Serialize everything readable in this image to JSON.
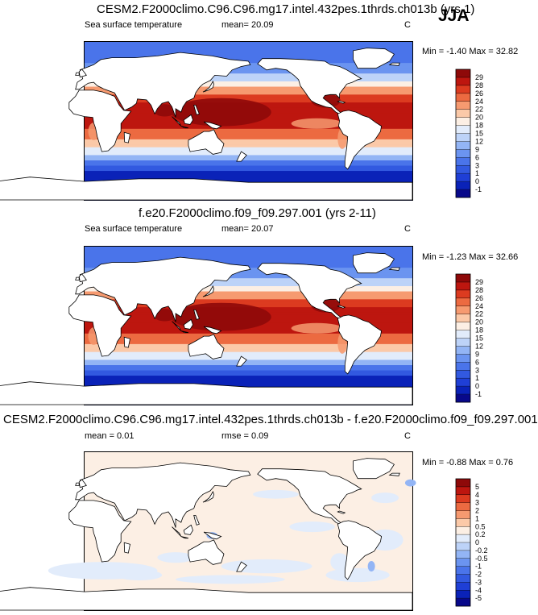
{
  "season": "JJA",
  "panels": [
    {
      "title": "CESM2.F2000climo.C96.C96.mg17.intel.432pes.1thrds.ch013b (yrs 1)",
      "variable": "Sea surface temperature",
      "stat1": "mean=  20.09",
      "stat2": "",
      "units": "C",
      "minmax": "Min =  -1.40 Max =  32.82",
      "field": "sst"
    },
    {
      "title": "f.e20.F2000climo.f09_f09.297.001 (yrs 2-11)",
      "variable": "Sea surface temperature",
      "stat1": "mean=  20.07",
      "stat2": "",
      "units": "C",
      "minmax": "Min =  -1.23 Max =  32.66",
      "field": "sst"
    },
    {
      "title": "CESM2.F2000climo.C96.C96.mg17.intel.432pes.1thrds.ch013b - f.e20.F2000climo.f09_f09.297.001",
      "variable": "",
      "stat1": "mean =   0.01",
      "stat2": "rmse =   0.09",
      "units": "C",
      "minmax": "Min =  -0.88 Max =   0.76",
      "field": "diff"
    }
  ],
  "chart_data": [
    {
      "type": "heatmap",
      "title": "CESM2.F2000climo.C96.C96.mg17.intel.432pes.1thrds.ch013b (yrs 1)",
      "variable": "Sea surface temperature",
      "units": "C",
      "mean": 20.09,
      "min": -1.4,
      "max": 32.82,
      "colorbar_levels": [
        -1,
        0,
        1,
        3,
        6,
        9,
        12,
        15,
        18,
        20,
        22,
        24,
        26,
        28,
        29
      ],
      "colorbar_colors": [
        "#08088a",
        "#0a22b8",
        "#1f3fd6",
        "#3259e0",
        "#4a74ea",
        "#6b94f0",
        "#93b5f5",
        "#bdd3f8",
        "#e2ecfb",
        "#fcefe4",
        "#fbc9a8",
        "#f69a70",
        "#ec6a41",
        "#dc3b20",
        "#bd160f",
        "#8e0909"
      ]
    },
    {
      "type": "heatmap",
      "title": "f.e20.F2000climo.f09_f09.297.001 (yrs 2-11)",
      "variable": "Sea surface temperature",
      "units": "C",
      "mean": 20.07,
      "min": -1.23,
      "max": 32.66,
      "colorbar_levels": [
        -1,
        0,
        1,
        3,
        6,
        9,
        12,
        15,
        18,
        20,
        22,
        24,
        26,
        28,
        29
      ],
      "colorbar_colors": [
        "#08088a",
        "#0a22b8",
        "#1f3fd6",
        "#3259e0",
        "#4a74ea",
        "#6b94f0",
        "#93b5f5",
        "#bdd3f8",
        "#e2ecfb",
        "#fcefe4",
        "#fbc9a8",
        "#f69a70",
        "#ec6a41",
        "#dc3b20",
        "#bd160f",
        "#8e0909"
      ]
    },
    {
      "type": "heatmap",
      "title": "CESM2.F2000climo.C96.C96.mg17.intel.432pes.1thrds.ch013b - f.e20.F2000climo.f09_f09.297.001",
      "units": "C",
      "mean": 0.01,
      "rmse": 0.09,
      "min": -0.88,
      "max": 0.76,
      "colorbar_levels": [
        -5,
        -4,
        -3,
        -2,
        -1,
        -0.5,
        -0.2,
        0,
        0.2,
        0.5,
        1,
        2,
        3,
        4,
        5
      ],
      "colorbar_colors": [
        "#08088a",
        "#0a22b8",
        "#1f3fd6",
        "#3259e0",
        "#4a74ea",
        "#6b94f0",
        "#93b5f5",
        "#bdd3f8",
        "#e2ecfb",
        "#fcefe4",
        "#fbc9a8",
        "#f69a70",
        "#ec6a41",
        "#dc3b20",
        "#bd160f",
        "#8e0909"
      ]
    }
  ]
}
